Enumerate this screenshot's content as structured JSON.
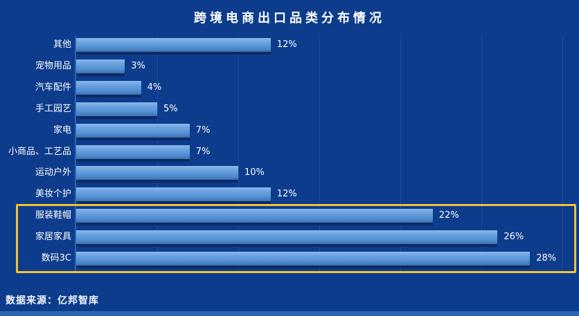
{
  "title": "跨境电商出口品类分布情况",
  "chart_data": {
    "type": "bar",
    "orientation": "horizontal",
    "title": "跨境电商出口品类分布情况",
    "categories": [
      "其他",
      "宠物用品",
      "汽车配件",
      "手工园艺",
      "家电",
      "小商品、工艺品",
      "运动户外",
      "美妆个护",
      "服装鞋帽",
      "家居家具",
      "数码3C"
    ],
    "values": [
      12,
      3,
      4,
      5,
      7,
      7,
      10,
      12,
      22,
      26,
      28
    ],
    "value_labels": [
      "12%",
      "3%",
      "4%",
      "5%",
      "7%",
      "7%",
      "10%",
      "12%",
      "22%",
      "26%",
      "28%"
    ],
    "unit": "%",
    "xlim": [
      0,
      30
    ],
    "gridline_interval_percent": 5,
    "grid": true,
    "legend": "none",
    "highlighted_categories": [
      "服装鞋帽",
      "家居家具",
      "数码3C"
    ]
  },
  "footer": {
    "source": "数据来源：亿邦智库"
  },
  "colors": {
    "background": "#0d3c8c",
    "bar_gradient_top": "#8ab8ea",
    "bar_gradient_bottom": "#3c6ea8",
    "bar_shadow": "#0b2a64",
    "gridline": "#1e4b9c",
    "highlight_border": "#f2c233",
    "text": "#ffffff",
    "bottom_strip": "#2b67b3"
  }
}
